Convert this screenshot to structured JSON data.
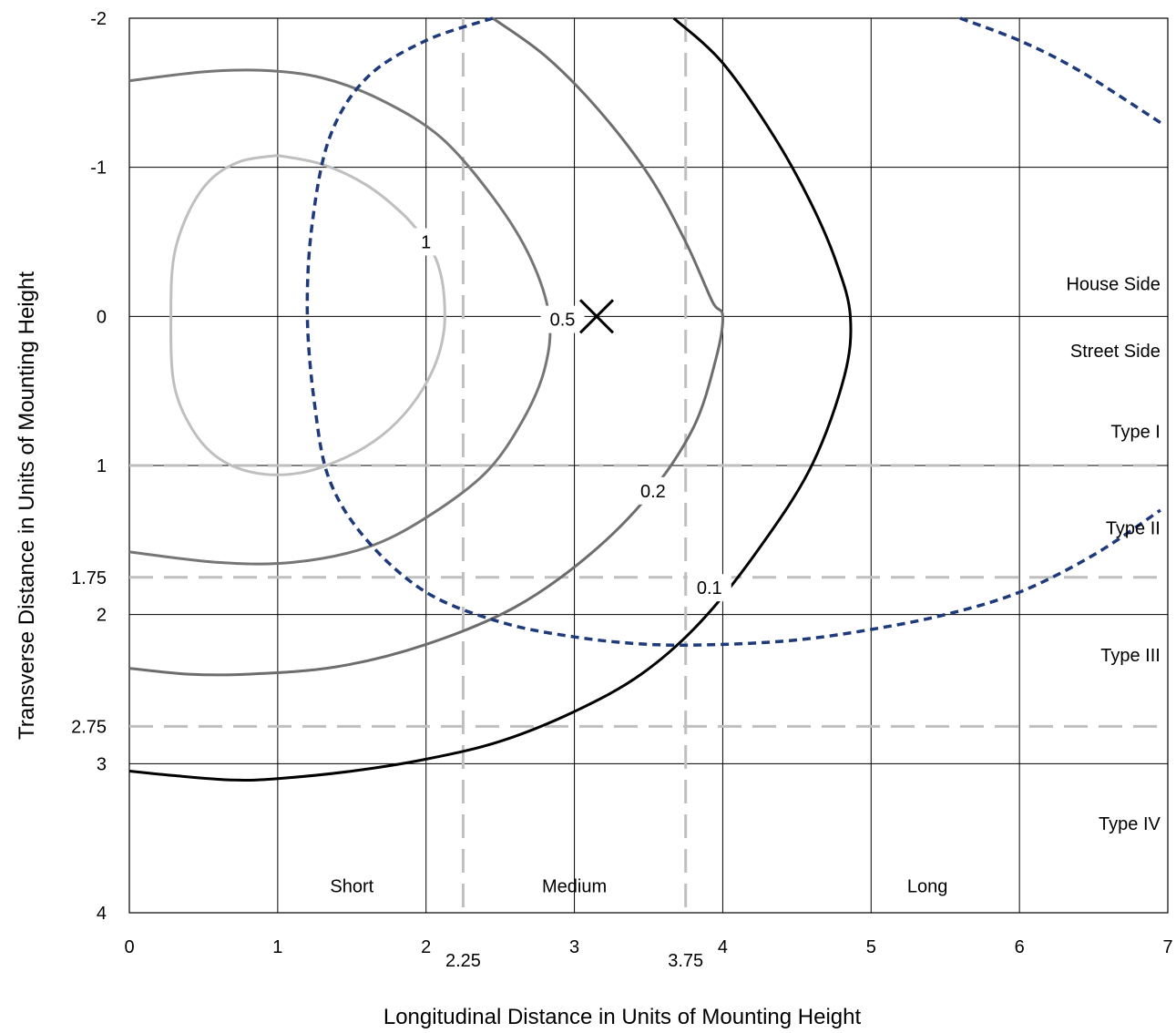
{
  "chart_data": {
    "type": "line",
    "xlabel": "Longitudinal Distance in Units of Mounting Height",
    "ylabel": "Transverse Distance in Units of Mounting Height",
    "xlim": [
      0,
      7
    ],
    "ylim": [
      -2,
      4
    ],
    "y_inverted": true,
    "grid": true,
    "x_ticks": [
      {
        "v": 0,
        "label": "0"
      },
      {
        "v": 1,
        "label": "1"
      },
      {
        "v": 2,
        "label": "2"
      },
      {
        "v": 3,
        "label": "3"
      },
      {
        "v": 4,
        "label": "4"
      },
      {
        "v": 5,
        "label": "5"
      },
      {
        "v": 6,
        "label": "6"
      },
      {
        "v": 7,
        "label": "7"
      }
    ],
    "x_extra_ticks": [
      {
        "v": 2.25,
        "label": "2.25"
      },
      {
        "v": 3.75,
        "label": "3.75"
      }
    ],
    "y_ticks": [
      {
        "v": -2,
        "label": "-2"
      },
      {
        "v": -1,
        "label": "-1"
      },
      {
        "v": 0,
        "label": "0"
      },
      {
        "v": 1,
        "label": "1"
      },
      {
        "v": 1.75,
        "label": "1.75"
      },
      {
        "v": 2,
        "label": "2"
      },
      {
        "v": 2.75,
        "label": "2.75"
      },
      {
        "v": 3,
        "label": "3"
      },
      {
        "v": 4,
        "label": "4"
      }
    ],
    "reference_lines": {
      "horizontal": [
        1,
        1.75,
        2.75
      ],
      "vertical": [
        2.25,
        3.75
      ],
      "color": "#bfbfbf"
    },
    "series": [
      {
        "label": "1",
        "color": "#bfbfbf",
        "dashed": false,
        "label_at": [
          2.0,
          -0.5
        ],
        "points": [
          [
            1.0,
            -1.08
          ],
          [
            1.3,
            -1.02
          ],
          [
            1.6,
            -0.88
          ],
          [
            1.85,
            -0.68
          ],
          [
            2.0,
            -0.5
          ],
          [
            2.08,
            -0.35
          ],
          [
            2.12,
            -0.15
          ],
          [
            2.12,
            0.1
          ],
          [
            2.05,
            0.35
          ],
          [
            1.9,
            0.6
          ],
          [
            1.7,
            0.8
          ],
          [
            1.45,
            0.95
          ],
          [
            1.15,
            1.05
          ],
          [
            0.85,
            1.05
          ],
          [
            0.6,
            0.95
          ],
          [
            0.42,
            0.75
          ],
          [
            0.3,
            0.45
          ],
          [
            0.28,
            0.0
          ],
          [
            0.3,
            -0.4
          ],
          [
            0.4,
            -0.7
          ],
          [
            0.55,
            -0.92
          ],
          [
            0.75,
            -1.04
          ],
          [
            1.0,
            -1.08
          ]
        ]
      },
      {
        "label": "0.5",
        "color": "#767676",
        "dashed": false,
        "label_at": [
          2.92,
          0.02
        ],
        "points": [
          [
            0.0,
            -1.58
          ],
          [
            0.5,
            -1.64
          ],
          [
            0.9,
            -1.65
          ],
          [
            1.3,
            -1.6
          ],
          [
            1.7,
            -1.45
          ],
          [
            2.1,
            -1.2
          ],
          [
            2.45,
            -0.8
          ],
          [
            2.7,
            -0.4
          ],
          [
            2.83,
            0.0
          ],
          [
            2.8,
            0.35
          ],
          [
            2.65,
            0.7
          ],
          [
            2.4,
            1.05
          ],
          [
            2.0,
            1.35
          ],
          [
            1.6,
            1.55
          ],
          [
            1.1,
            1.65
          ],
          [
            0.6,
            1.65
          ],
          [
            0.0,
            1.58
          ]
        ]
      },
      {
        "label": "0.2",
        "color": "#6d6d6d",
        "dashed": false,
        "label_at": [
          3.53,
          1.17
        ],
        "points": [
          [
            2.45,
            -2.0
          ],
          [
            2.8,
            -1.75
          ],
          [
            3.15,
            -1.4
          ],
          [
            3.5,
            -0.95
          ],
          [
            3.75,
            -0.5
          ],
          [
            3.93,
            -0.1
          ],
          [
            4.0,
            0.0
          ],
          [
            3.95,
            0.3
          ],
          [
            3.8,
            0.75
          ],
          [
            3.5,
            1.2
          ],
          [
            3.1,
            1.6
          ],
          [
            2.6,
            1.95
          ],
          [
            2.0,
            2.2
          ],
          [
            1.4,
            2.35
          ],
          [
            0.8,
            2.4
          ],
          [
            0.4,
            2.4
          ],
          [
            0.0,
            2.36
          ]
        ]
      },
      {
        "label": "0.1",
        "color": "#000000",
        "dashed": false,
        "label_at": [
          3.91,
          1.82
        ],
        "points": [
          [
            3.67,
            -2.0
          ],
          [
            4.0,
            -1.7
          ],
          [
            4.35,
            -1.2
          ],
          [
            4.6,
            -0.75
          ],
          [
            4.77,
            -0.35
          ],
          [
            4.86,
            0.0
          ],
          [
            4.82,
            0.4
          ],
          [
            4.6,
            1.0
          ],
          [
            4.25,
            1.55
          ],
          [
            3.85,
            2.05
          ],
          [
            3.45,
            2.4
          ],
          [
            3.0,
            2.65
          ],
          [
            2.5,
            2.85
          ],
          [
            2.0,
            2.97
          ],
          [
            1.5,
            3.05
          ],
          [
            1.0,
            3.1
          ],
          [
            0.7,
            3.11
          ],
          [
            0.3,
            3.08
          ],
          [
            0.0,
            3.05
          ]
        ]
      },
      {
        "label": "",
        "color": "#1f3a7a",
        "dashed": true,
        "label_at": null,
        "points": [
          [
            2.45,
            -2.0
          ],
          [
            2.0,
            -1.85
          ],
          [
            1.6,
            -1.6
          ],
          [
            1.35,
            -1.2
          ],
          [
            1.23,
            -0.6
          ],
          [
            1.2,
            0.0
          ],
          [
            1.25,
            0.6
          ],
          [
            1.35,
            1.1
          ],
          [
            1.6,
            1.5
          ],
          [
            2.0,
            1.85
          ],
          [
            2.5,
            2.05
          ],
          [
            3.0,
            2.15
          ],
          [
            3.5,
            2.2
          ],
          [
            4.0,
            2.2
          ],
          [
            4.5,
            2.17
          ],
          [
            5.0,
            2.1
          ],
          [
            5.5,
            2.0
          ],
          [
            6.0,
            1.85
          ],
          [
            6.5,
            1.6
          ],
          [
            6.95,
            1.3
          ]
        ]
      },
      {
        "label": "",
        "color": "#1f3a7a",
        "dashed": true,
        "label_at": null,
        "points": [
          [
            5.6,
            -2.0
          ],
          [
            6.0,
            -1.85
          ],
          [
            6.4,
            -1.65
          ],
          [
            6.95,
            -1.3
          ]
        ]
      }
    ],
    "marker": {
      "type": "x",
      "x": 3.15,
      "y": 0.0
    },
    "annotations": [
      {
        "text": "House Side",
        "x": 6.95,
        "y": -0.22,
        "anchor": "end"
      },
      {
        "text": "Street Side",
        "x": 6.95,
        "y": 0.23,
        "anchor": "end"
      },
      {
        "text": "Type I",
        "x": 6.95,
        "y": 0.77,
        "anchor": "end"
      },
      {
        "text": "Type II",
        "x": 6.95,
        "y": 1.42,
        "anchor": "end"
      },
      {
        "text": "Type III",
        "x": 6.95,
        "y": 2.27,
        "anchor": "end"
      },
      {
        "text": "Type IV",
        "x": 6.95,
        "y": 3.4,
        "anchor": "end"
      },
      {
        "text": "Short",
        "x": 1.5,
        "y": 3.82,
        "anchor": "middle"
      },
      {
        "text": "Medium",
        "x": 3.0,
        "y": 3.82,
        "anchor": "middle"
      },
      {
        "text": "Long",
        "x": 5.38,
        "y": 3.82,
        "anchor": "middle"
      }
    ]
  }
}
